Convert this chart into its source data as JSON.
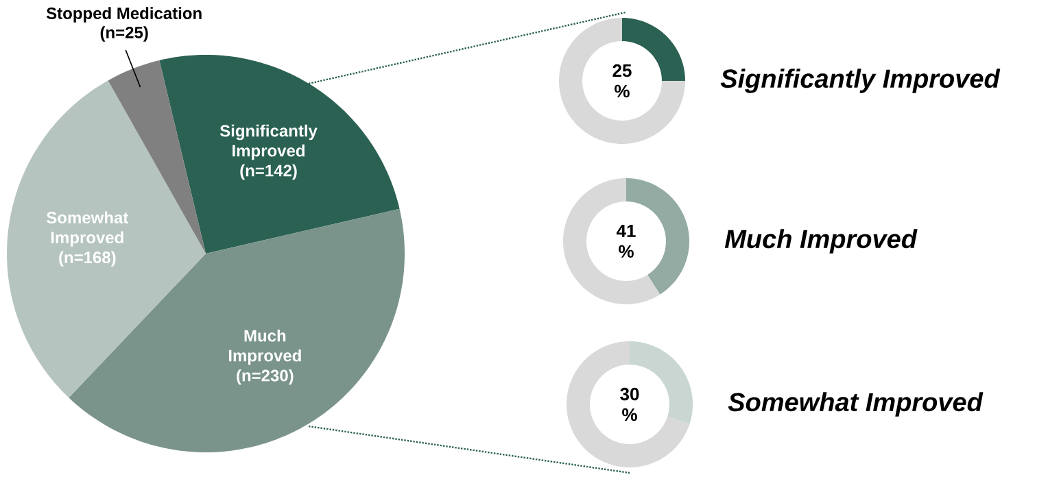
{
  "chart_data": [
    {
      "type": "pie",
      "categories": [
        "Significantly Improved",
        "Much Improved",
        "Somewhat Improved",
        "Stopped Medication"
      ],
      "values": [
        142,
        230,
        168,
        25
      ],
      "colors": [
        "#2b6152",
        "#7a948b",
        "#b5c4bf",
        "#808080"
      ],
      "value_labels": [
        "(n=142)",
        "(n=230)",
        "(n=168)",
        "(n=25)"
      ]
    },
    {
      "type": "donut",
      "title": "Significantly Improved",
      "categories": [
        null,
        null
      ],
      "values": [
        25,
        75
      ],
      "colors": [
        "#2b6152",
        "#d9d9d9"
      ],
      "annotations": [
        "25 %"
      ]
    },
    {
      "type": "donut",
      "title": "Much Improved",
      "categories": [
        null,
        null
      ],
      "values": [
        41,
        59
      ],
      "colors": [
        "#93aba3",
        "#d9d9d9"
      ],
      "annotations": [
        "41 %"
      ]
    },
    {
      "type": "donut",
      "title": "Somewhat Improved",
      "categories": [
        null,
        null
      ],
      "values": [
        30,
        70
      ],
      "colors": [
        "#c9d6d2",
        "#d9d9d9"
      ],
      "annotations": [
        "30 %"
      ]
    }
  ]
}
